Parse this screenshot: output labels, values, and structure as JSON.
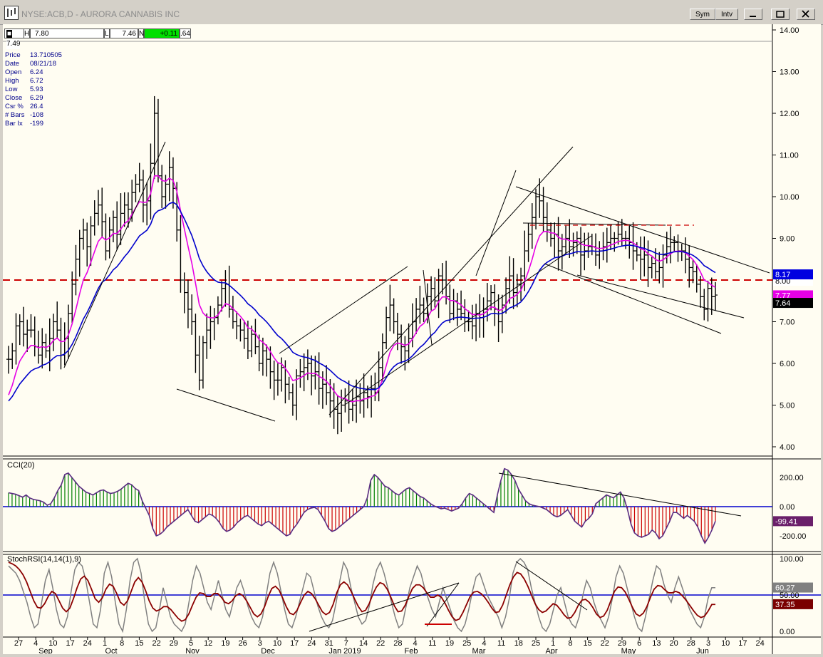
{
  "window": {
    "title": "NYSE:ACB,D - AURORA CANNABIS INC",
    "sym_label": "Sym",
    "intv_label": "Intv"
  },
  "quote_bar": {
    "o": "7.49",
    "h_tag": "H",
    "h": "7.80",
    "l_tag": "L",
    "l": "7.46",
    "n_tag": "N",
    "change": "+0.11",
    "last": ".64"
  },
  "info_panel": [
    {
      "key": "Price",
      "value": "13.710505"
    },
    {
      "key": "Date",
      "value": "08/21/18"
    },
    {
      "key": "Open",
      "value": "6.24"
    },
    {
      "key": "High",
      "value": "6.72"
    },
    {
      "key": "Low",
      "value": "5.93"
    },
    {
      "key": "Close",
      "value": "6.29"
    },
    {
      "key": "Csr %",
      "value": "26.4"
    },
    {
      "key": "# Bars",
      "value": "-108"
    },
    {
      "key": "Bar Ix",
      "value": "-199"
    }
  ],
  "colors": {
    "bg": "#fffdf2",
    "price_bars": "#000000",
    "ma_fast": "#e600e6",
    "ma_slow": "#0000cc",
    "cci_pos": "#008000",
    "cci_neg": "#cc0000",
    "cci_line": "#5a2d82",
    "stoch_fast": "#808080",
    "stoch_slow": "#8b0000",
    "support_line": "#cc0000"
  },
  "chart_data": [
    {
      "type": "line",
      "panel": "price",
      "ylim": [
        4.0,
        14.0
      ],
      "y_ticks": [
        "14.00",
        "13.00",
        "12.00",
        "11.00",
        "10.00",
        "9.00",
        "8.00",
        "7.00",
        "6.00",
        "5.00",
        "4.00"
      ],
      "x_ticks": [
        "27",
        "4",
        "10",
        "17",
        "24",
        "1",
        "8",
        "15",
        "22",
        "29",
        "5",
        "12",
        "19",
        "26",
        "3",
        "10",
        "17",
        "24",
        "31",
        "7",
        "14",
        "22",
        "28",
        "4",
        "11",
        "19",
        "25",
        "4",
        "11",
        "18",
        "25",
        "1",
        "8",
        "15",
        "22",
        "29",
        "6",
        "13",
        "20",
        "28",
        "3",
        "10",
        "17",
        "24"
      ],
      "month_labels": [
        "Sep",
        "Oct",
        "Nov",
        "Dec",
        "Jan 2019",
        "Feb",
        "Mar",
        "Apr",
        "May",
        "Jun"
      ],
      "closes": [
        6.1,
        6.3,
        6.9,
        7.0,
        6.7,
        6.8,
        6.8,
        6.4,
        6.2,
        6.5,
        6.3,
        6.6,
        7.0,
        6.8,
        6.2,
        6.6,
        7.2,
        7.9,
        8.5,
        9.0,
        9.2,
        8.8,
        9.3,
        9.6,
        9.8,
        9.4,
        8.7,
        9.2,
        9.5,
        9.1,
        9.6,
        9.8,
        9.7,
        10.1,
        10.3,
        10.4,
        9.8,
        9.9,
        10.8,
        12.0,
        10.5,
        10.0,
        10.3,
        10.7,
        10.2,
        9.2,
        8.0,
        7.7,
        7.3,
        7.0,
        6.2,
        5.6,
        6.5,
        6.8,
        7.0,
        7.1,
        7.4,
        7.8,
        7.9,
        7.3,
        7.0,
        6.9,
        6.8,
        6.6,
        6.3,
        6.7,
        6.4,
        6.0,
        6.3,
        6.1,
        5.8,
        5.6,
        5.6,
        5.9,
        5.5,
        5.3,
        5.0,
        5.7,
        5.8,
        5.9,
        6.0,
        5.7,
        5.8,
        5.4,
        5.5,
        5.3,
        5.1,
        4.9,
        4.8,
        5.0,
        5.1,
        4.9,
        5.0,
        5.2,
        5.1,
        5.3,
        5.2,
        5.4,
        5.3,
        5.9,
        6.5,
        7.1,
        7.4,
        7.0,
        6.7,
        6.4,
        6.3,
        6.6,
        7.0,
        7.3,
        7.4,
        7.2,
        7.6,
        7.8,
        7.5,
        8.1,
        8.0,
        7.6,
        7.2,
        7.5,
        7.3,
        7.2,
        7.0,
        7.0,
        6.9,
        7.2,
        7.1,
        7.3,
        7.5,
        7.7,
        7.3,
        7.0,
        7.4,
        7.8,
        8.1,
        7.7,
        7.9,
        8.1,
        8.7,
        9.1,
        9.5,
        10.0,
        9.9,
        9.5,
        9.2,
        9.0,
        9.1,
        8.7,
        8.8,
        9.0,
        8.8,
        8.9,
        9.0,
        8.6,
        8.7,
        8.8,
        8.8,
        8.6,
        8.7,
        8.8,
        8.9,
        9.0,
        9.0,
        9.1,
        9.0,
        9.0,
        8.9,
        8.7,
        8.6,
        8.5,
        8.6,
        8.3,
        8.4,
        8.2,
        8.3,
        8.6,
        8.8,
        8.9,
        8.9,
        8.7,
        8.7,
        8.5,
        8.3,
        8.2,
        7.9,
        7.6,
        7.3,
        7.8,
        7.6,
        7.64
      ],
      "ma_fast_label": "7.77",
      "ma_slow_label": "8.17",
      "last_label": "7.64",
      "tag_8": "8.00"
    },
    {
      "type": "bar",
      "panel": "cci",
      "title": "CCI(20)",
      "ylim": [
        -300,
        300
      ],
      "y_ticks": [
        "200.00",
        "0.00",
        "-200.00"
      ],
      "last_label": "-99.41",
      "values": [
        95,
        90,
        85,
        75,
        65,
        80,
        60,
        50,
        45,
        40,
        30,
        10,
        20,
        60,
        110,
        150,
        220,
        230,
        200,
        170,
        140,
        120,
        100,
        90,
        80,
        95,
        110,
        115,
        100,
        90,
        95,
        105,
        120,
        140,
        160,
        150,
        125,
        110,
        40,
        -10,
        -60,
        -150,
        -200,
        -190,
        -170,
        -140,
        -120,
        -100,
        -80,
        -60,
        -40,
        -20,
        -60,
        -100,
        -110,
        -90,
        -70,
        -50,
        -60,
        -80,
        -110,
        -150,
        -170,
        -160,
        -140,
        -110,
        -90,
        -70,
        -60,
        -80,
        -100,
        -120,
        -130,
        -110,
        -100,
        -120,
        -140,
        -160,
        -180,
        -200,
        -190,
        -150,
        -120,
        -80,
        -40,
        -20,
        -10,
        -5,
        -20,
        -60,
        -100,
        -150,
        -170,
        -160,
        -140,
        -120,
        -100,
        -80,
        -60,
        -40,
        -20,
        0,
        60,
        180,
        220,
        200,
        170,
        140,
        130,
        110,
        90,
        80,
        100,
        120,
        130,
        110,
        90,
        70,
        60,
        40,
        20,
        5,
        -5,
        -15,
        -10,
        -20,
        -30,
        -20,
        -10,
        20,
        60,
        90,
        80,
        60,
        40,
        20,
        0,
        -20,
        -40,
        80,
        180,
        260,
        250,
        220,
        180,
        120,
        80,
        40,
        20,
        10,
        5,
        0,
        -10,
        -20,
        -40,
        -60,
        -70,
        -60,
        -40,
        -20,
        -60,
        -100,
        -120,
        -140,
        -100,
        -80,
        -50,
        20,
        40,
        60,
        80,
        70,
        60,
        80,
        100,
        60,
        -20,
        -120,
        -180,
        -200,
        -210,
        -200,
        -190,
        -160,
        -180,
        -220,
        -200,
        -150,
        -100,
        -40,
        -40,
        -60,
        -80,
        -60,
        -80,
        -100,
        -140,
        -200,
        -250,
        -210,
        -160,
        -99
      ]
    },
    {
      "type": "line",
      "panel": "stochrsi",
      "title": "StochRSI(14,14(1),9)",
      "ylim": [
        0,
        100
      ],
      "y_ticks": [
        "100.00",
        "50.00",
        "0.00"
      ],
      "last_fast_label": "60.27",
      "last_slow_label": "37.35",
      "fast": [
        90,
        85,
        80,
        70,
        55,
        40,
        20,
        5,
        10,
        40,
        70,
        85,
        60,
        30,
        10,
        5,
        20,
        55,
        85,
        95,
        90,
        70,
        40,
        10,
        5,
        30,
        80,
        95,
        75,
        40,
        10,
        0,
        30,
        70,
        95,
        100,
        80,
        40,
        10,
        0,
        5,
        30,
        60,
        40,
        20,
        10,
        5,
        0,
        10,
        40,
        70,
        90,
        80,
        60,
        40,
        30,
        50,
        70,
        50,
        30,
        20,
        40,
        60,
        70,
        55,
        35,
        20,
        10,
        5,
        20,
        50,
        80,
        95,
        80,
        55,
        30,
        10,
        5,
        20,
        40,
        60,
        80,
        75,
        55,
        35,
        20,
        10,
        5,
        15,
        40,
        70,
        95,
        85,
        60,
        40,
        20,
        10,
        15,
        35,
        65,
        85,
        95,
        80,
        60,
        40,
        20,
        5,
        10,
        35,
        60,
        75,
        90,
        80,
        60,
        45,
        30,
        20,
        40,
        60,
        45,
        30,
        15,
        5,
        0,
        10,
        30,
        55,
        75,
        80,
        65,
        50,
        40,
        30,
        20,
        5,
        20,
        45,
        80,
        95,
        100,
        95,
        85,
        60,
        40,
        20,
        5,
        0,
        10,
        30,
        50,
        60,
        40,
        20,
        10,
        5,
        20,
        50,
        70,
        60,
        40,
        25,
        15,
        5,
        20,
        45,
        75,
        90,
        80,
        60,
        40,
        20,
        5,
        0,
        20,
        45,
        70,
        90,
        85,
        65,
        50,
        40,
        60,
        75,
        60,
        45,
        30,
        20,
        10,
        5,
        20,
        45,
        60,
        60
      ],
      "slow": [
        95,
        93,
        90,
        85,
        78,
        68,
        55,
        42,
        33,
        32,
        38,
        48,
        55,
        52,
        42,
        32,
        27,
        32,
        45,
        60,
        72,
        76,
        70,
        58,
        45,
        40,
        46,
        58,
        65,
        62,
        52,
        40,
        36,
        42,
        55,
        68,
        74,
        68,
        56,
        42,
        32,
        28,
        30,
        34,
        34,
        30,
        24,
        18,
        14,
        16,
        24,
        36,
        47,
        53,
        52,
        48,
        48,
        52,
        52,
        47,
        40,
        38,
        42,
        49,
        52,
        49,
        42,
        33,
        24,
        20,
        24,
        34,
        48,
        59,
        62,
        57,
        46,
        34,
        25,
        23,
        29,
        40,
        50,
        55,
        52,
        45,
        36,
        27,
        23,
        26,
        37,
        53,
        64,
        68,
        64,
        55,
        44,
        34,
        27,
        29,
        38,
        51,
        61,
        67,
        65,
        58,
        47,
        35,
        27,
        28,
        36,
        48,
        59,
        64,
        64,
        60,
        53,
        47,
        47,
        50,
        47,
        39,
        29,
        20,
        15,
        17,
        26,
        37,
        48,
        54,
        55,
        52,
        47,
        40,
        32,
        26,
        27,
        36,
        50,
        64,
        75,
        81,
        79,
        72,
        62,
        50,
        38,
        30,
        26,
        28,
        33,
        38,
        36,
        30,
        23,
        18,
        19,
        26,
        36,
        43,
        44,
        40,
        33,
        24,
        19,
        21,
        29,
        42,
        55,
        61,
        60,
        54,
        44,
        33,
        24,
        21,
        25,
        34,
        47,
        58,
        63,
        62,
        57,
        53,
        53,
        55,
        53,
        48,
        42,
        35,
        28,
        22,
        19,
        21,
        28,
        37,
        37
      ]
    }
  ]
}
